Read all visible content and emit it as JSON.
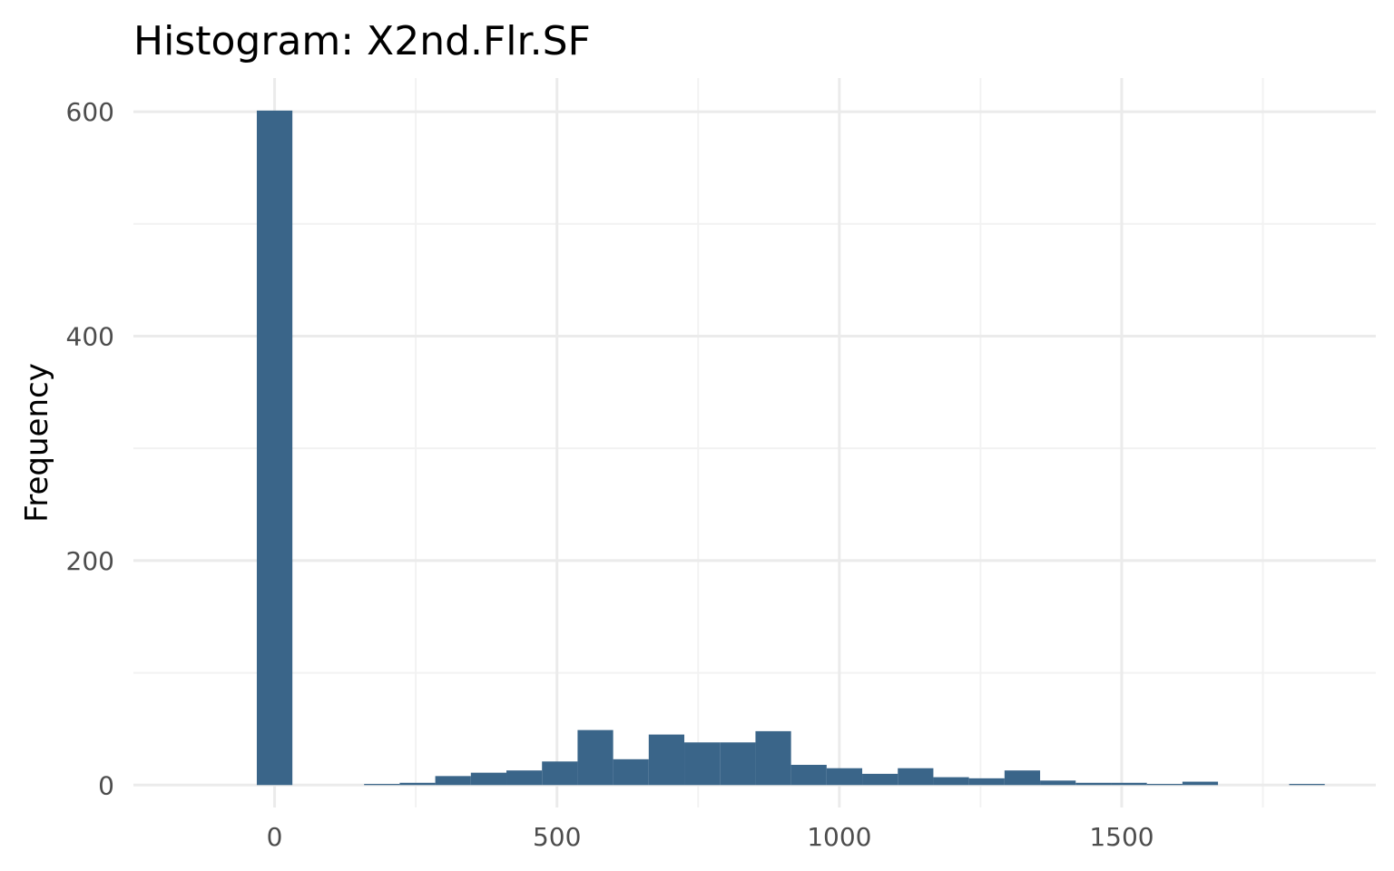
{
  "chart_data": {
    "type": "bar",
    "title": "Histogram:  X2nd.Flr.SF",
    "xlabel": "",
    "ylabel": "Frequency",
    "bar_color": "#3a6589",
    "bin_width": 63,
    "xlim": [
      -250,
      1950
    ],
    "ylim": [
      -20,
      630
    ],
    "x_ticks": [
      0,
      500,
      1000,
      1500
    ],
    "x_tick_labels": [
      "0",
      "500",
      "1000",
      "1500"
    ],
    "y_ticks": [
      0,
      200,
      400,
      600
    ],
    "y_tick_labels": [
      "0",
      "200",
      "400",
      "600"
    ],
    "x_minor_ticks": [
      250,
      750,
      1250,
      1750
    ],
    "y_minor_ticks": [
      100,
      300,
      500
    ],
    "grid": true,
    "legend": "none",
    "bins": [
      {
        "x": 0,
        "count": 601
      },
      {
        "x": 190,
        "count": 1
      },
      {
        "x": 253,
        "count": 2
      },
      {
        "x": 316,
        "count": 8
      },
      {
        "x": 379,
        "count": 11
      },
      {
        "x": 442,
        "count": 13
      },
      {
        "x": 505,
        "count": 21
      },
      {
        "x": 568,
        "count": 49
      },
      {
        "x": 631,
        "count": 23
      },
      {
        "x": 694,
        "count": 45
      },
      {
        "x": 757,
        "count": 38
      },
      {
        "x": 820,
        "count": 38
      },
      {
        "x": 883,
        "count": 48
      },
      {
        "x": 946,
        "count": 18
      },
      {
        "x": 1009,
        "count": 15
      },
      {
        "x": 1072,
        "count": 10
      },
      {
        "x": 1135,
        "count": 15
      },
      {
        "x": 1198,
        "count": 7
      },
      {
        "x": 1261,
        "count": 6
      },
      {
        "x": 1324,
        "count": 13
      },
      {
        "x": 1387,
        "count": 4
      },
      {
        "x": 1450,
        "count": 2
      },
      {
        "x": 1513,
        "count": 2
      },
      {
        "x": 1576,
        "count": 1
      },
      {
        "x": 1639,
        "count": 3
      },
      {
        "x": 1828,
        "count": 1
      }
    ]
  }
}
